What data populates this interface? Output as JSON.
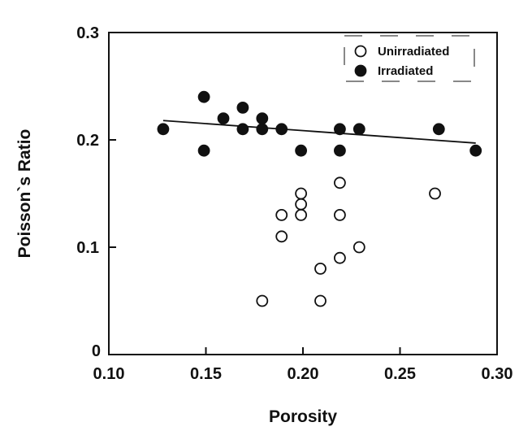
{
  "chart_data": {
    "type": "scatter",
    "xlabel": "Porosity",
    "ylabel": "Poisson`s Ratio",
    "xlim": [
      0.1,
      0.3
    ],
    "ylim": [
      0,
      0.3
    ],
    "x_ticks": [
      "0.10",
      "0.15",
      "0.20",
      "0.25",
      "0.30"
    ],
    "y_ticks": [
      "0",
      "0.1",
      "0.2",
      "0.3"
    ],
    "legend_position": "top-right",
    "series": [
      {
        "name": "Unirradiated",
        "marker": "open-circle",
        "points": [
          [
            0.179,
            0.05
          ],
          [
            0.189,
            0.11
          ],
          [
            0.189,
            0.13
          ],
          [
            0.199,
            0.13
          ],
          [
            0.199,
            0.14
          ],
          [
            0.199,
            0.15
          ],
          [
            0.209,
            0.05
          ],
          [
            0.209,
            0.08
          ],
          [
            0.219,
            0.09
          ],
          [
            0.219,
            0.13
          ],
          [
            0.219,
            0.16
          ],
          [
            0.229,
            0.1
          ],
          [
            0.268,
            0.15
          ]
        ]
      },
      {
        "name": "Irradiated",
        "marker": "filled-circle",
        "points": [
          [
            0.128,
            0.21
          ],
          [
            0.149,
            0.19
          ],
          [
            0.149,
            0.24
          ],
          [
            0.159,
            0.22
          ],
          [
            0.169,
            0.21
          ],
          [
            0.169,
            0.23
          ],
          [
            0.179,
            0.21
          ],
          [
            0.179,
            0.22
          ],
          [
            0.189,
            0.21
          ],
          [
            0.199,
            0.19
          ],
          [
            0.219,
            0.19
          ],
          [
            0.219,
            0.21
          ],
          [
            0.229,
            0.21
          ],
          [
            0.27,
            0.21
          ],
          [
            0.289,
            0.19
          ]
        ]
      }
    ],
    "fit_line": {
      "series": "Irradiated",
      "x": [
        0.128,
        0.289
      ],
      "y": [
        0.218,
        0.197
      ]
    },
    "colors": {
      "axis": "#111111",
      "marker": "#111111",
      "background": "#ffffff"
    }
  }
}
